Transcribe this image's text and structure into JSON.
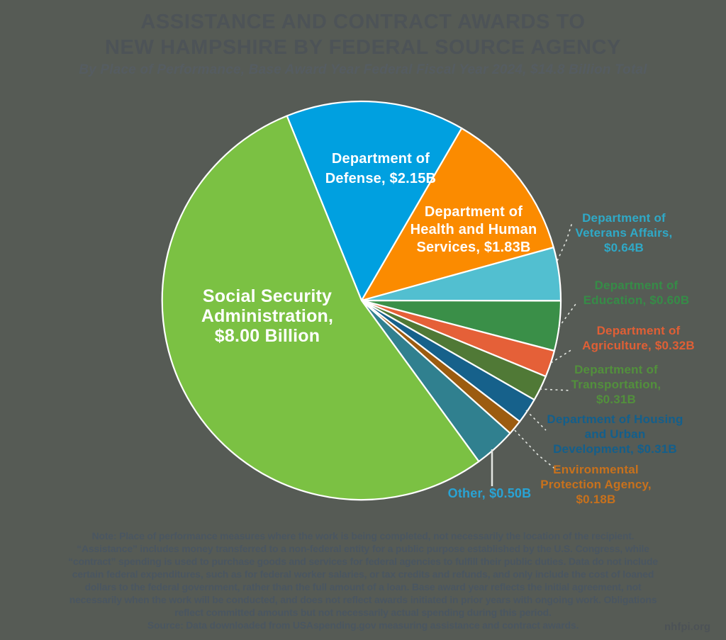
{
  "header": {
    "title_line1": "ASSISTANCE AND CONTRACT AWARDS TO",
    "title_line2": "NEW HAMPSHIRE BY FEDERAL SOURCE AGENCY",
    "subtitle": "By Place of Performance, Base Award Year Federal Fiscal Year 2024, $14.8 Billion Total"
  },
  "chart_data": {
    "type": "pie",
    "title": "Assistance and Contract Awards to New Hampshire by Federal Source Agency",
    "subtitle": "By Place of Performance, Base Award Year Federal Fiscal Year 2024",
    "total_label": "$14.8 Billion Total",
    "units": "USD billions",
    "legend_position": "on-chart callout labels",
    "start_angle_deg": -22,
    "slices": [
      {
        "id": "defense",
        "name": "Department of Defense",
        "value": 2.15,
        "value_label": "$2.15B",
        "color": "#00a0e0",
        "label_color": "#ffffff",
        "label_lines": [
          "Department of",
          "Defense, $2.15B"
        ]
      },
      {
        "id": "health-human-services",
        "name": "Department of Health and Human Services",
        "value": 1.83,
        "value_label": "$1.83B",
        "color": "#fb8b00",
        "label_color": "#ffffff",
        "label_lines": [
          "Department of",
          "Health and Human",
          "Services, $1.83B"
        ]
      },
      {
        "id": "veterans-affairs",
        "name": "Department of Veterans Affairs",
        "value": 0.64,
        "value_label": "$0.64B",
        "color": "#52bfd0",
        "label_color": "#2fa9c7",
        "label_lines": [
          "Department of",
          "Veterans Affairs,",
          "$0.64B"
        ]
      },
      {
        "id": "education",
        "name": "Department of Education",
        "value": 0.6,
        "value_label": "$0.60B",
        "color": "#3a8f48",
        "label_color": "#368c47",
        "label_lines": [
          "Department of",
          "Education, $0.60B"
        ]
      },
      {
        "id": "agriculture",
        "name": "Department of Agriculture",
        "value": 0.32,
        "value_label": "$0.32B",
        "color": "#e56038",
        "label_color": "#e05f35",
        "label_lines": [
          "Department of",
          "Agriculture, $0.32B"
        ]
      },
      {
        "id": "transportation",
        "name": "Department of Transportation",
        "value": 0.31,
        "value_label": "$0.31B",
        "color": "#507936",
        "label_color": "#52903c",
        "label_lines": [
          "Department of",
          "Transportation,",
          "$0.31B"
        ]
      },
      {
        "id": "housing-urban-development",
        "name": "Department of Housing and Urban Development",
        "value": 0.31,
        "value_label": "$0.31B",
        "color": "#16618b",
        "label_color": "#135f8c",
        "label_lines": [
          "Department of Housing",
          "and Urban",
          "Development, $0.31B"
        ]
      },
      {
        "id": "environmental-protection-agency",
        "name": "Environmental Protection Agency",
        "value": 0.18,
        "value_label": "$0.18B",
        "color": "#9c5c10",
        "label_color": "#c8711c",
        "label_lines": [
          "Environmental",
          "Protection Agency,",
          "$0.18B"
        ]
      },
      {
        "id": "other",
        "name": "Other",
        "value": 0.5,
        "value_label": "$0.50B",
        "color": "#30808f",
        "label_color": "#29a3d4",
        "label_lines": [
          "Other, $0.50B"
        ]
      },
      {
        "id": "social-security-administration",
        "name": "Social Security Administration",
        "value": 8.0,
        "value_label": "$8.00 Billion",
        "color": "#7bc143",
        "label_color": "#ffffff",
        "label_lines": [
          "Social Security",
          "Administration,",
          "$8.00 Billion"
        ]
      }
    ]
  },
  "footer": {
    "note_lines": [
      "Note: Place of performance measures where the work is being completed, not necessarily the location of the recipient.",
      "“Assistance” includes money transferred to a non-federal entity for a public purpose established by the U.S. Congress, while",
      "“contract” spending is used to purchase goods and services for federal agencies to fulfill their public duties. Data do not include",
      "certain federal expenditures, such as for federal worker salaries, or tax credits and refunds, and only include the cost of loaned",
      "dollars to the federal government, rather than the full amount of a loan. Base award year reflects the initial agreement, not",
      "necessarily when the work will be conducted, and does not reflect awards initiated in prior years with ongoing work.  Obligations",
      "reflect committed amounts but not necessarily actual spending during this period.",
      "Source: Data downloaded from USAspending.gov measuring assistance and contract awards."
    ],
    "brand": "nhfpi.org"
  },
  "colors": {
    "background": "#565b55",
    "title_text": "#4d5357",
    "note_text": "#4a5661",
    "leader_line": "#e3e6e1"
  }
}
